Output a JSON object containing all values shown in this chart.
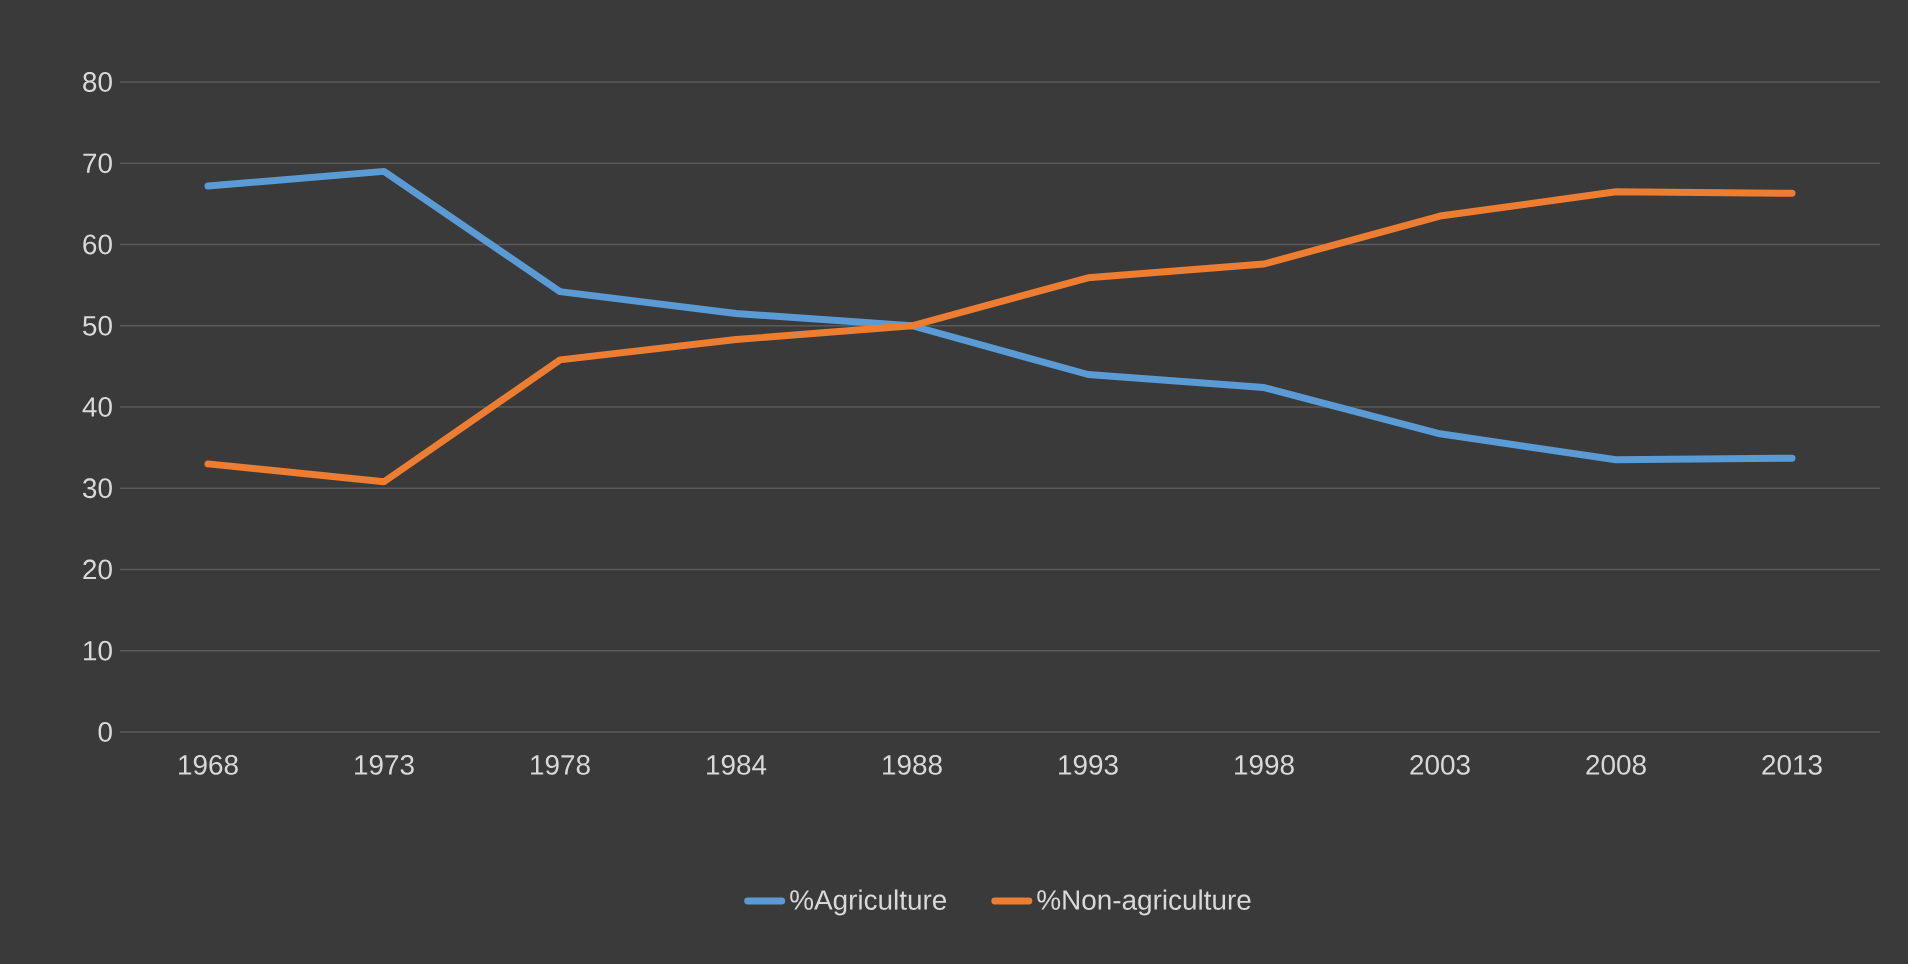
{
  "chart_data": {
    "type": "line",
    "categories": [
      "1968",
      "1973",
      "1978",
      "1984",
      "1988",
      "1993",
      "1998",
      "2003",
      "2008",
      "2013"
    ],
    "series": [
      {
        "name": "%Agriculture",
        "color": "#5b9bd5",
        "values": [
          67.2,
          69,
          54.2,
          51.5,
          50,
          44,
          42.4,
          36.7,
          33.5,
          33.7
        ]
      },
      {
        "name": "%Non-agriculture",
        "color": "#ed7d31",
        "values": [
          33,
          30.8,
          45.8,
          48.3,
          50,
          55.9,
          57.6,
          63.5,
          66.5,
          66.3
        ]
      }
    ],
    "ylim": [
      0,
      80
    ],
    "yticks": [
      0,
      10,
      20,
      30,
      40,
      50,
      60,
      70,
      80
    ],
    "grid": "y",
    "legend": "bottom"
  }
}
